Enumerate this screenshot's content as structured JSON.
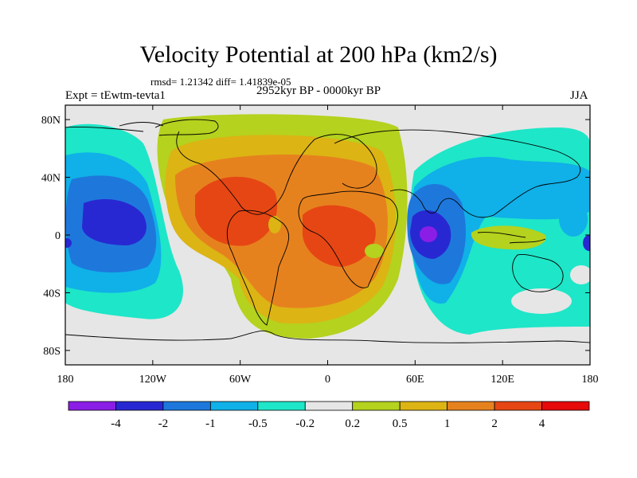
{
  "title": "Velocity Potential at 200 hPa (km2/s)",
  "stats": "rmsd= 1.21342 diff= 1.41839e-05",
  "left_label": "Expt = tEwtm-tevta1",
  "center_label": "2952kyr BP - 0000kyr BP",
  "right_label": "JJA",
  "lat_ticks": [
    {
      "label": "80N",
      "value": 80
    },
    {
      "label": "40N",
      "value": 40
    },
    {
      "label": "0",
      "value": 0
    },
    {
      "label": "40S",
      "value": -40
    },
    {
      "label": "80S",
      "value": -80
    }
  ],
  "lon_ticks": [
    {
      "label": "180",
      "value": -180
    },
    {
      "label": "120W",
      "value": -120
    },
    {
      "label": "60W",
      "value": -60
    },
    {
      "label": "0",
      "value": 0
    },
    {
      "label": "60E",
      "value": 60
    },
    {
      "label": "120E",
      "value": 120
    },
    {
      "label": "180",
      "value": 180
    }
  ],
  "colorbar": {
    "colors": [
      "#8b1ee6",
      "#2828d2",
      "#1e78dc",
      "#10b0e8",
      "#1ee6c8",
      "#e6e6e6",
      "#b4d21e",
      "#dcb414",
      "#e6821e",
      "#e64614",
      "#e60a0a"
    ],
    "labels": [
      "-4",
      "-2",
      "-1",
      "-0.5",
      "-0.2",
      "0.2",
      "0.5",
      "1",
      "2",
      "4"
    ]
  },
  "chart_data": {
    "type": "heatmap",
    "title": "Velocity Potential at 200 hPa (km2/s)",
    "xlim": [
      -180,
      180
    ],
    "ylim": [
      -90,
      90
    ],
    "levels": [
      -4,
      -2,
      -1,
      -0.5,
      -0.2,
      0.2,
      0.5,
      1,
      2,
      4
    ],
    "features": [
      {
        "lon": -140,
        "lat": 10,
        "value": -3
      },
      {
        "lon": 65,
        "lat": 0,
        "value": -4.5
      },
      {
        "lon": -55,
        "lat": 25,
        "value": 2.5
      },
      {
        "lon": 0,
        "lat": 10,
        "value": 2.5
      },
      {
        "lon": 115,
        "lat": 0,
        "value": 0.7
      },
      {
        "lon": 150,
        "lat": 0,
        "value": -0.2
      },
      {
        "lon": -175,
        "lat": 0,
        "value": -1.2
      }
    ]
  }
}
